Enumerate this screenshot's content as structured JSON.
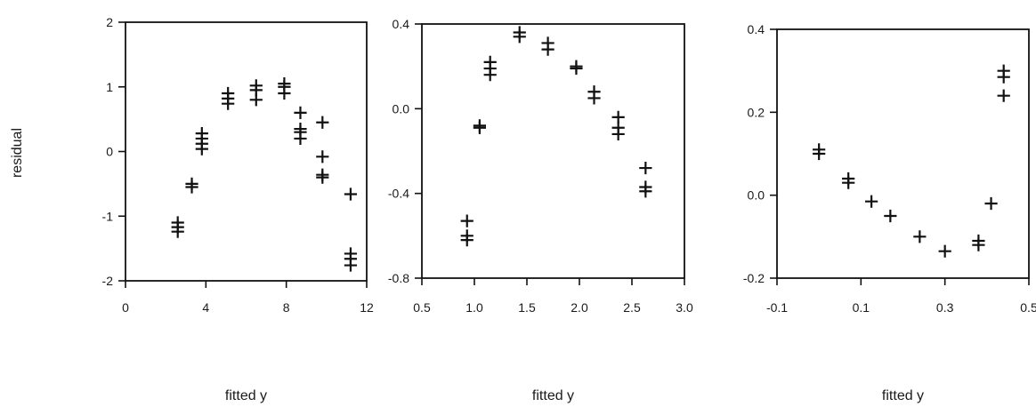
{
  "chart_data": [
    {
      "type": "scatter",
      "xlabel": "fitted y",
      "ylabel": "residual",
      "xlim": [
        0,
        12
      ],
      "ylim": [
        -2,
        2
      ],
      "x_ticks": [
        "0",
        "4",
        "8",
        "12"
      ],
      "y_ticks": [
        "2",
        "1",
        "0",
        "-1",
        "-2"
      ],
      "grid": false,
      "marker": "+",
      "points": [
        {
          "x": 2.6,
          "y": -1.1
        },
        {
          "x": 2.6,
          "y": -1.17
        },
        {
          "x": 2.6,
          "y": -1.24
        },
        {
          "x": 3.3,
          "y": -0.5
        },
        {
          "x": 3.3,
          "y": -0.55
        },
        {
          "x": 3.8,
          "y": 0.28
        },
        {
          "x": 3.8,
          "y": 0.2
        },
        {
          "x": 3.8,
          "y": 0.12
        },
        {
          "x": 3.8,
          "y": 0.04
        },
        {
          "x": 5.1,
          "y": 0.9
        },
        {
          "x": 5.1,
          "y": 0.82
        },
        {
          "x": 5.1,
          "y": 0.74
        },
        {
          "x": 6.5,
          "y": 1.02
        },
        {
          "x": 6.5,
          "y": 0.95
        },
        {
          "x": 6.5,
          "y": 0.8
        },
        {
          "x": 7.9,
          "y": 1.05
        },
        {
          "x": 7.9,
          "y": 1.0
        },
        {
          "x": 7.9,
          "y": 0.9
        },
        {
          "x": 8.7,
          "y": 0.6
        },
        {
          "x": 8.7,
          "y": 0.35
        },
        {
          "x": 8.7,
          "y": 0.3
        },
        {
          "x": 8.7,
          "y": 0.2
        },
        {
          "x": 9.8,
          "y": 0.45
        },
        {
          "x": 9.8,
          "y": -0.08
        },
        {
          "x": 9.8,
          "y": -0.36
        },
        {
          "x": 9.8,
          "y": -0.4
        },
        {
          "x": 11.2,
          "y": -0.66
        },
        {
          "x": 11.2,
          "y": -1.58
        },
        {
          "x": 11.2,
          "y": -1.66
        },
        {
          "x": 11.2,
          "y": -1.76
        }
      ]
    },
    {
      "type": "scatter",
      "xlabel": "fitted y",
      "ylabel": "",
      "xlim": [
        0.5,
        3.0
      ],
      "ylim": [
        -0.8,
        0.4
      ],
      "x_ticks": [
        "0.5",
        "1.0",
        "1.5",
        "2.0",
        "2.5",
        "3.0"
      ],
      "y_ticks": [
        "0.4",
        "0.0",
        "-0.4",
        "-0.8"
      ],
      "grid": false,
      "marker": "+",
      "points": [
        {
          "x": 0.93,
          "y": -0.53
        },
        {
          "x": 0.93,
          "y": -0.6
        },
        {
          "x": 0.93,
          "y": -0.62
        },
        {
          "x": 1.05,
          "y": -0.08
        },
        {
          "x": 1.05,
          "y": -0.09
        },
        {
          "x": 1.15,
          "y": 0.22
        },
        {
          "x": 1.15,
          "y": 0.19
        },
        {
          "x": 1.15,
          "y": 0.16
        },
        {
          "x": 1.43,
          "y": 0.36
        },
        {
          "x": 1.43,
          "y": 0.34
        },
        {
          "x": 1.7,
          "y": 0.31
        },
        {
          "x": 1.7,
          "y": 0.28
        },
        {
          "x": 1.97,
          "y": 0.2
        },
        {
          "x": 1.97,
          "y": 0.19
        },
        {
          "x": 2.14,
          "y": 0.08
        },
        {
          "x": 2.14,
          "y": 0.05
        },
        {
          "x": 2.37,
          "y": -0.04
        },
        {
          "x": 2.37,
          "y": -0.09
        },
        {
          "x": 2.37,
          "y": -0.12
        },
        {
          "x": 2.63,
          "y": -0.28
        },
        {
          "x": 2.63,
          "y": -0.37
        },
        {
          "x": 2.63,
          "y": -0.39
        }
      ]
    },
    {
      "type": "scatter",
      "xlabel": "fitted y",
      "ylabel": "",
      "xlim": [
        -0.1,
        0.5
      ],
      "ylim": [
        -0.2,
        0.4
      ],
      "x_ticks": [
        "-0.1",
        "0.1",
        "0.3",
        "0.5"
      ],
      "y_ticks": [
        "0.4",
        "0.2",
        "0.0",
        "-0.2"
      ],
      "grid": false,
      "marker": "+",
      "points": [
        {
          "x": 0.0,
          "y": 0.11
        },
        {
          "x": 0.0,
          "y": 0.1
        },
        {
          "x": 0.07,
          "y": 0.04
        },
        {
          "x": 0.07,
          "y": 0.03
        },
        {
          "x": 0.125,
          "y": -0.015
        },
        {
          "x": 0.17,
          "y": -0.05
        },
        {
          "x": 0.24,
          "y": -0.1
        },
        {
          "x": 0.3,
          "y": -0.135
        },
        {
          "x": 0.38,
          "y": -0.11
        },
        {
          "x": 0.38,
          "y": -0.12
        },
        {
          "x": 0.41,
          "y": -0.02
        },
        {
          "x": 0.44,
          "y": 0.3
        },
        {
          "x": 0.44,
          "y": 0.285
        },
        {
          "x": 0.44,
          "y": 0.24
        }
      ]
    }
  ]
}
